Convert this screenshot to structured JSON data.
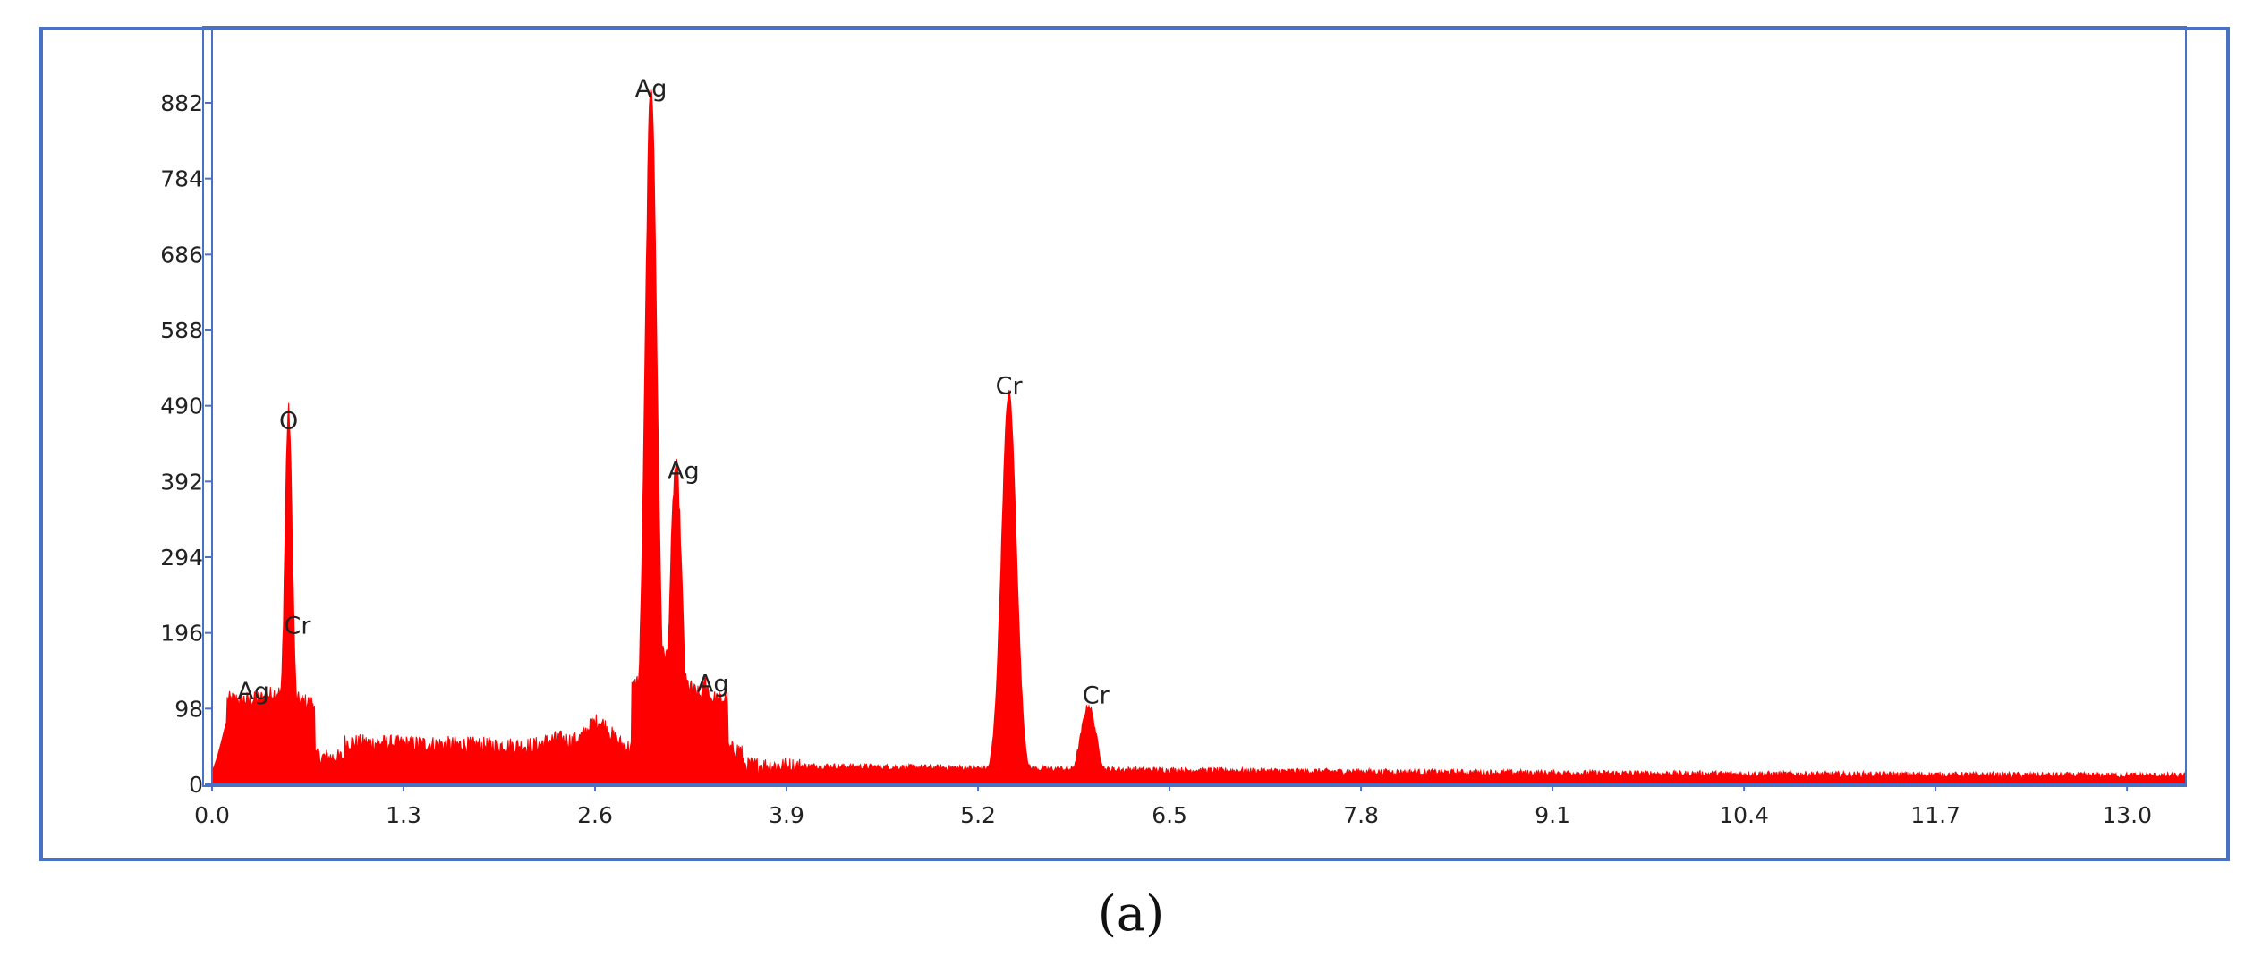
{
  "caption": "(a)",
  "chart_data": {
    "type": "area",
    "title": "",
    "xlabel": "",
    "ylabel": "",
    "xlim": [
      0.0,
      13.4
    ],
    "ylim": [
      0,
      882
    ],
    "x_ticks": [
      "0.0",
      "1.3",
      "2.6",
      "3.9",
      "5.2",
      "6.5",
      "7.8",
      "9.1",
      "10.4",
      "11.7",
      "13.0"
    ],
    "y_ticks": [
      "0",
      "98",
      "196",
      "294",
      "392",
      "490",
      "588",
      "686",
      "784",
      "882"
    ],
    "grid": false,
    "colors": {
      "fill": "#ff0000",
      "axis": "#4a72c4",
      "frame": "#4a72c4"
    },
    "background_peaks": [
      {
        "x": 0.15,
        "y": 110
      },
      {
        "x": 0.45,
        "y": 120
      },
      {
        "x": 1.25,
        "y": 45
      },
      {
        "x": 1.7,
        "y": 50
      },
      {
        "x": 2.35,
        "y": 60
      },
      {
        "x": 2.62,
        "y": 85
      }
    ],
    "peaks": [
      {
        "x": 0.52,
        "y": 420,
        "label": "O"
      },
      {
        "x": 2.98,
        "y": 880,
        "label": "Ag"
      },
      {
        "x": 3.15,
        "y": 385,
        "label": "Ag"
      },
      {
        "x": 3.35,
        "y": 105,
        "label": "Ag"
      },
      {
        "x": 5.41,
        "y": 495,
        "label": "Cr"
      },
      {
        "x": 5.95,
        "y": 90,
        "label": "Cr"
      }
    ],
    "annotations": [
      {
        "text": "O",
        "x": 0.52,
        "y": 460
      },
      {
        "text": "Cr",
        "x": 0.58,
        "y": 195
      },
      {
        "text": "Ag",
        "x": 0.28,
        "y": 110
      },
      {
        "text": "Ag",
        "x": 2.98,
        "y": 890
      },
      {
        "text": "Ag",
        "x": 3.2,
        "y": 395
      },
      {
        "text": "Ag",
        "x": 3.4,
        "y": 120
      },
      {
        "text": "Cr",
        "x": 5.41,
        "y": 505
      },
      {
        "text": "Cr",
        "x": 6.0,
        "y": 105
      }
    ]
  }
}
